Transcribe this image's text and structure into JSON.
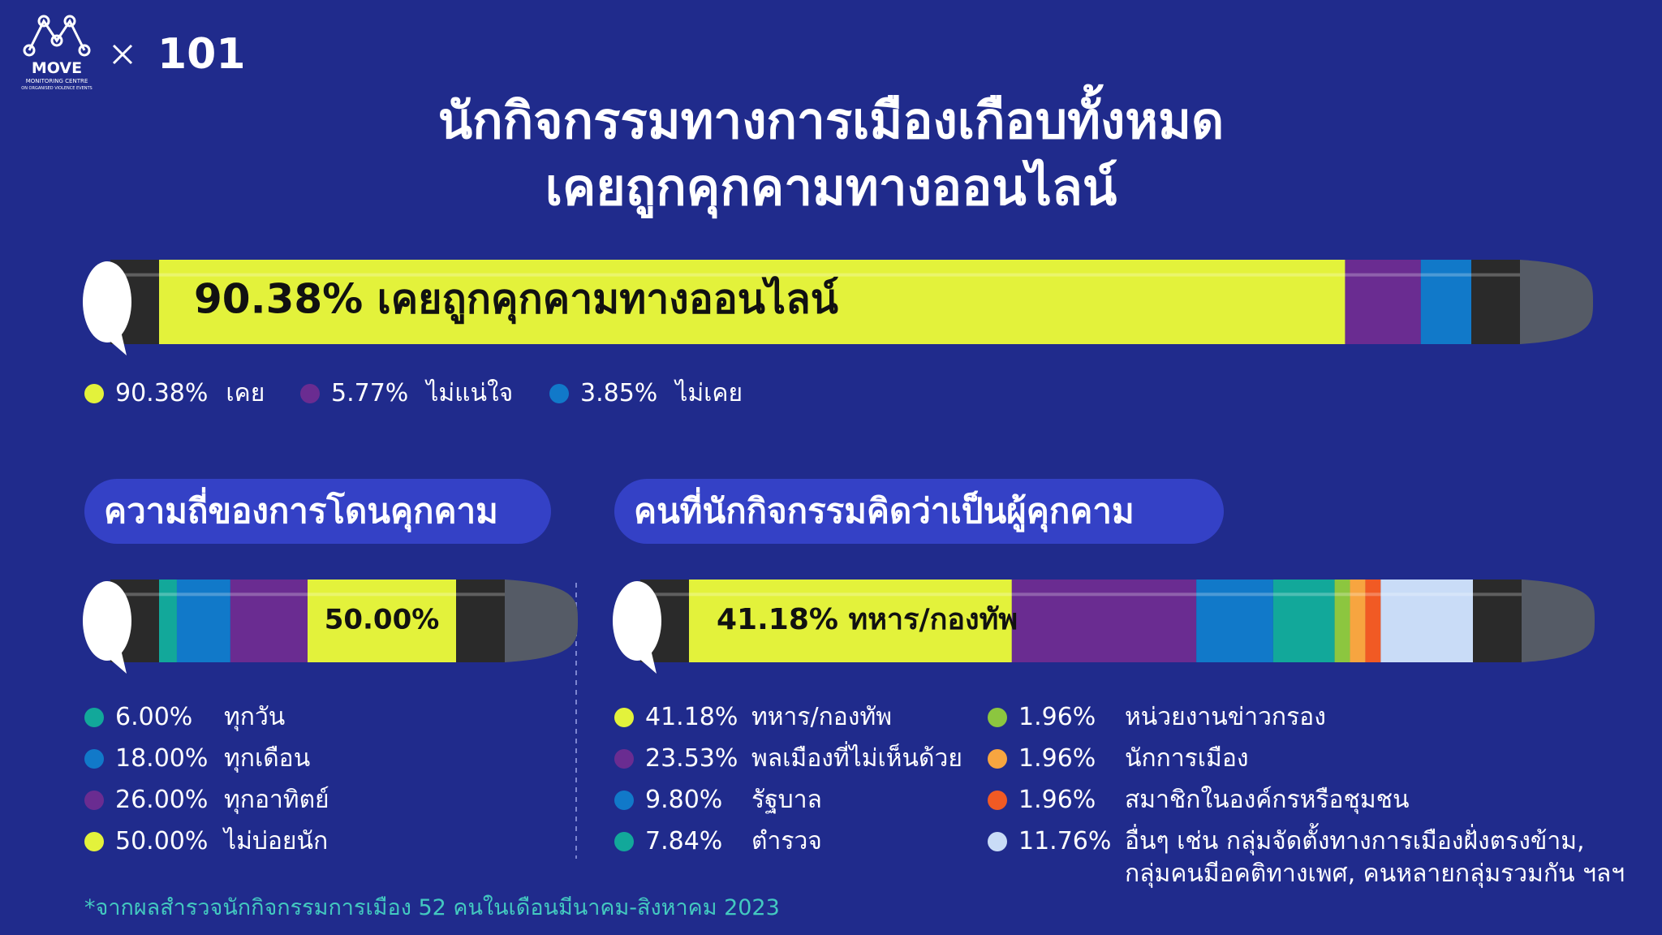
{
  "logo": {
    "name": "MOVE",
    "line1": "MONITORING CENTRE",
    "line2": "ON ORGANISED VIOLENCE EVENTS",
    "partner": "101"
  },
  "title": [
    "นักกิจกรรมทางการเมืองเกือบทั้งหมด",
    "เคยถูกคุกคามทางออนไลน์"
  ],
  "chart_data": [
    {
      "type": "bar",
      "orientation": "horizontal",
      "stacked": true,
      "bar_label": "90.38% เคยถูกคุกคามทางออนไลน์",
      "series": [
        {
          "name": "เคย",
          "color": "#e3f23b",
          "values": [
            90.38
          ],
          "value_labels": [
            "90.38%"
          ]
        },
        {
          "name": "ไม่แน่ใจ",
          "color": "#6a2c91",
          "values": [
            5.77
          ],
          "value_labels": [
            "5.77%"
          ]
        },
        {
          "name": "ไม่เคย",
          "color": "#1179c9",
          "values": [
            3.85
          ],
          "value_labels": [
            "3.85%"
          ]
        }
      ]
    },
    {
      "type": "bar",
      "orientation": "horizontal",
      "stacked": true,
      "title": "ความถี่ของการโดนคุกคาม",
      "series": [
        {
          "name": "ทุกวัน",
          "color": "#12a89a",
          "values": [
            6
          ],
          "value_labels": [
            "6.00%"
          ]
        },
        {
          "name": "ทุกเดือน",
          "color": "#1179c9",
          "values": [
            18
          ],
          "value_labels": [
            "18.00%"
          ]
        },
        {
          "name": "ทุกอาทิตย์",
          "color": "#6a2c91",
          "values": [
            26
          ],
          "value_labels": [
            "26.00%"
          ]
        },
        {
          "name": "ไม่บ่อยนัก",
          "color": "#e3f23b",
          "values": [
            50
          ],
          "value_labels": [
            "50.00%"
          ]
        }
      ]
    },
    {
      "type": "bar",
      "orientation": "horizontal",
      "stacked": true,
      "title": "คนที่นักกิจกรรมคิดว่าเป็นผู้คุกคาม",
      "bar_label": "41.18% ทหาร/กองทัพ",
      "series": [
        {
          "name": "ทหาร/กองทัพ",
          "color": "#e3f23b",
          "values": [
            41.18
          ],
          "value_labels": [
            "41.18%"
          ]
        },
        {
          "name": "พลเมืองที่ไม่เห็นด้วย",
          "color": "#6a2c91",
          "values": [
            23.53
          ],
          "value_labels": [
            "23.53%"
          ]
        },
        {
          "name": "รัฐบาล",
          "color": "#1179c9",
          "values": [
            9.8
          ],
          "value_labels": [
            "9.80%"
          ]
        },
        {
          "name": "ตำรวจ",
          "color": "#12a89a",
          "values": [
            7.84
          ],
          "value_labels": [
            "7.84%"
          ]
        },
        {
          "name": "หน่วยงานข่าวกรอง",
          "color": "#8cc63f",
          "values": [
            1.96
          ],
          "value_labels": [
            "1.96%"
          ]
        },
        {
          "name": "นักการเมือง",
          "color": "#f7a540",
          "values": [
            1.96
          ],
          "value_labels": [
            "1.96%"
          ]
        },
        {
          "name": "สมาชิกในองค์กรหรือชุมชน",
          "color": "#f15a24",
          "values": [
            1.96
          ],
          "value_labels": [
            "1.96%"
          ]
        },
        {
          "name": "อื่นๆ เช่น กลุ่มจัดตั้งทางการเมืองฝั่งตรงข้าม, กลุ่มคนมีอคติทางเพศ, คนหลายกลุ่มรวมกัน ฯลฯ",
          "color": "#c9dcf7",
          "values": [
            11.76
          ],
          "value_labels": [
            "11.76%"
          ]
        }
      ]
    }
  ],
  "footnote": "*จากผลสำรวจนักกิจกรรมการเมือง 52 คนในเดือนมีนาคม-สิงหาคม 2023"
}
